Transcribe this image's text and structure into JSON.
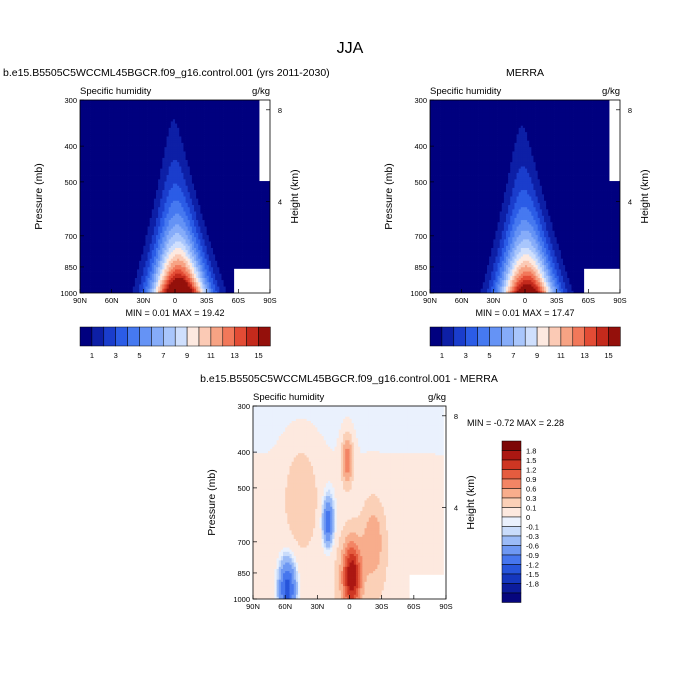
{
  "page_title": "JJA",
  "colors": {
    "full_field": [
      "#00007f",
      "#0d1fa6",
      "#1a3dcc",
      "#2b5ce6",
      "#4679f0",
      "#6593f5",
      "#86acf9",
      "#a9c6fc",
      "#cfdffd",
      "#fde9e0",
      "#fbcab5",
      "#f7a384",
      "#f2785a",
      "#e34c35",
      "#c42a1c",
      "#94100b"
    ],
    "difference": [
      "#06067e",
      "#0c1c9c",
      "#1537be",
      "#2755db",
      "#4676ee",
      "#6e98f3",
      "#9bbbf7",
      "#c9dcfb",
      "#eaf1fd",
      "#fde9df",
      "#fbd0b7",
      "#f8ad8c",
      "#f38565",
      "#e55c3f",
      "#ce3623",
      "#ab1712",
      "#7d0706"
    ]
  },
  "chart_data": [
    {
      "type": "heatmap",
      "subtype": "filled-contour",
      "title": "b.e15.B5505C5WCCML45BGCR.f09_g16.control.001 (yrs 2011-2030)",
      "left_string": "Specific humidity",
      "right_string": "g/kg",
      "ylabel": "Pressure (mb)",
      "ylabel_right": "Height (km)",
      "xticks": [
        "90N",
        "60N",
        "30N",
        "0",
        "30S",
        "60S",
        "90S"
      ],
      "yticks": [
        "300",
        "400",
        "500",
        "700",
        "850",
        "1000"
      ],
      "yticks_right": [
        "8",
        "4"
      ],
      "ylim": [
        1000,
        300
      ],
      "xlim": [
        90,
        -90
      ],
      "min": 0.01,
      "max": 19.42,
      "stats_label": "MIN =  0.01  MAX =  19.42",
      "peak_lat": -4
    },
    {
      "type": "heatmap",
      "subtype": "filled-contour",
      "title": "MERRA",
      "left_string": "Specific humidity",
      "right_string": "g/kg",
      "ylabel": "Pressure (mb)",
      "ylabel_right": "Height (km)",
      "xticks": [
        "90N",
        "60N",
        "30N",
        "0",
        "30S",
        "60S",
        "90S"
      ],
      "yticks": [
        "300",
        "400",
        "500",
        "700",
        "850",
        "1000"
      ],
      "yticks_right": [
        "8",
        "4"
      ],
      "ylim": [
        1000,
        300
      ],
      "xlim": [
        90,
        -90
      ],
      "min": 0.01,
      "max": 17.47,
      "stats_label": "MIN =  0.01  MAX =  17.47",
      "peak_lat": -2
    },
    {
      "type": "heatmap",
      "subtype": "filled-contour",
      "title": "b.e15.B5505C5WCCML45BGCR.f09_g16.control.001 - MERRA",
      "left_string": "Specific humidity",
      "right_string": "g/kg",
      "ylabel": "Pressure (mb)",
      "ylabel_right": "Height (km)",
      "xticks": [
        "90N",
        "60N",
        "30N",
        "0",
        "30S",
        "60S",
        "90S"
      ],
      "yticks": [
        "300",
        "400",
        "500",
        "700",
        "850",
        "1000"
      ],
      "yticks_right": [
        "8",
        "4"
      ],
      "ylim": [
        1000,
        300
      ],
      "xlim": [
        90,
        -90
      ],
      "min": -0.72,
      "max": 2.28,
      "stats_label": "MIN =  -0.72  MAX =   2.28"
    }
  ],
  "colorbars": {
    "top_labels": [
      "1",
      "3",
      "5",
      "7",
      "9",
      "11",
      "13",
      "15"
    ],
    "diff_labels": [
      "1.8",
      "1.5",
      "1.2",
      "0.9",
      "0.6",
      "0.3",
      "0.1",
      "0",
      "-0.1",
      "-0.3",
      "-0.6",
      "-0.9",
      "-1.2",
      "-1.5",
      "-1.8"
    ]
  }
}
